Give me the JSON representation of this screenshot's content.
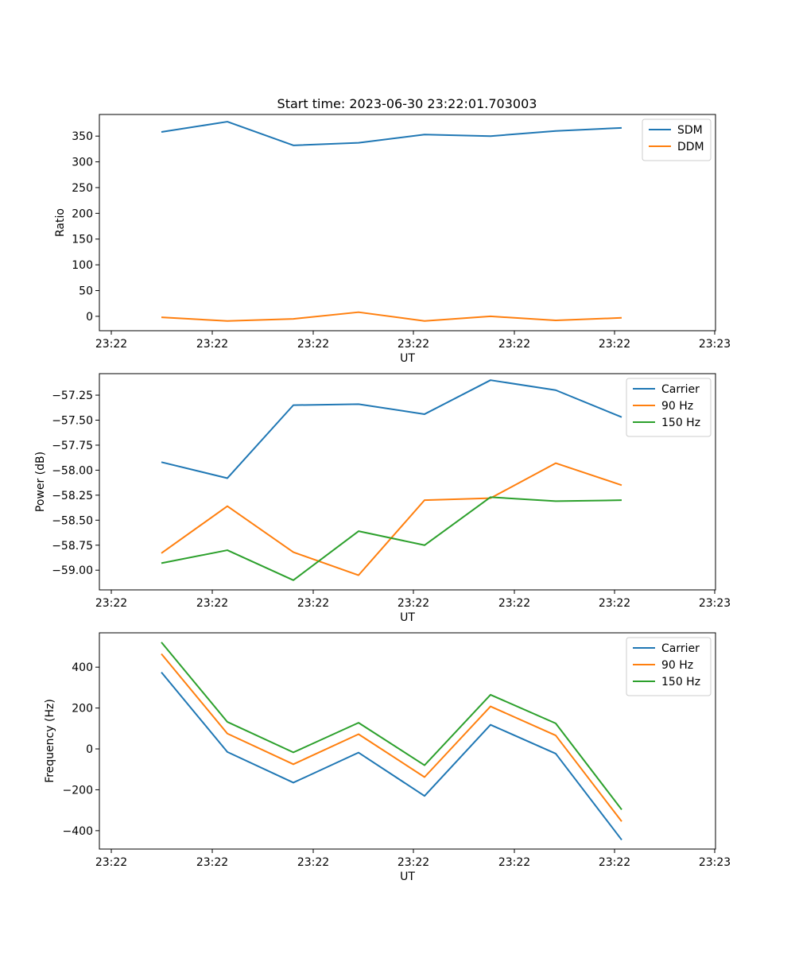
{
  "figure": {
    "title": "Start time: 2023-06-30 23:22:01.703003"
  },
  "chart_data": [
    {
      "type": "line",
      "xlabel": "UT",
      "ylabel": "Ratio",
      "x_tick_labels": [
        "23:22",
        "23:22",
        "23:22",
        "23:22",
        "23:22",
        "23:22",
        "23:23"
      ],
      "y_ticks": [
        0,
        50,
        100,
        150,
        200,
        250,
        300,
        350
      ],
      "ylim": [
        -28,
        392
      ],
      "grid": false,
      "legend_position": "top-right",
      "series": [
        {
          "name": "SDM",
          "color": "#1f77b4",
          "values": [
            358,
            378,
            332,
            337,
            353,
            350,
            360,
            366
          ]
        },
        {
          "name": "DDM",
          "color": "#ff7f0e",
          "values": [
            -2,
            -9,
            -5,
            8,
            -9,
            0,
            -8,
            -3
          ]
        }
      ]
    },
    {
      "type": "line",
      "xlabel": "UT",
      "ylabel": "Power (dB)",
      "x_tick_labels": [
        "23:22",
        "23:22",
        "23:22",
        "23:22",
        "23:22",
        "23:22",
        "23:23"
      ],
      "y_ticks": [
        -59.0,
        -58.75,
        -58.5,
        -58.25,
        -58.0,
        -57.75,
        -57.5,
        -57.25
      ],
      "y_tick_labels": [
        "−59.00",
        "−58.75",
        "−58.50",
        "−58.25",
        "−58.00",
        "−57.75",
        "−57.50",
        "−57.25"
      ],
      "ylim": [
        -59.197,
        -57.035
      ],
      "grid": false,
      "legend_position": "top-right",
      "series": [
        {
          "name": "Carrier",
          "color": "#1f77b4",
          "values": [
            -57.92,
            -58.08,
            -57.35,
            -57.34,
            -57.44,
            -57.1,
            -57.2,
            -57.47
          ]
        },
        {
          "name": "90 Hz",
          "color": "#ff7f0e",
          "values": [
            -58.83,
            -58.36,
            -58.82,
            -59.05,
            -58.3,
            -58.28,
            -57.93,
            -58.15
          ]
        },
        {
          "name": "150 Hz",
          "color": "#2ca02c",
          "values": [
            -58.93,
            -58.8,
            -59.1,
            -58.61,
            -58.75,
            -58.27,
            -58.31,
            -58.3
          ]
        }
      ]
    },
    {
      "type": "line",
      "xlabel": "UT",
      "ylabel": "Frequency (Hz)",
      "x_tick_labels": [
        "23:22",
        "23:22",
        "23:22",
        "23:22",
        "23:22",
        "23:22",
        "23:23"
      ],
      "y_ticks": [
        -400,
        -200,
        0,
        200,
        400
      ],
      "y_tick_labels": [
        "−400",
        "−200",
        "0",
        "200",
        "400"
      ],
      "ylim": [
        -490,
        568
      ],
      "grid": false,
      "legend_position": "top-right",
      "series": [
        {
          "name": "Carrier",
          "color": "#1f77b4",
          "values": [
            375,
            -15,
            -165,
            -18,
            -230,
            118,
            -23,
            -445
          ]
        },
        {
          "name": "90 Hz",
          "color": "#ff7f0e",
          "values": [
            465,
            75,
            -75,
            72,
            -138,
            208,
            66,
            -355
          ]
        },
        {
          "name": "150 Hz",
          "color": "#2ca02c",
          "values": [
            522,
            132,
            -17,
            128,
            -80,
            265,
            125,
            -297
          ]
        }
      ]
    }
  ]
}
